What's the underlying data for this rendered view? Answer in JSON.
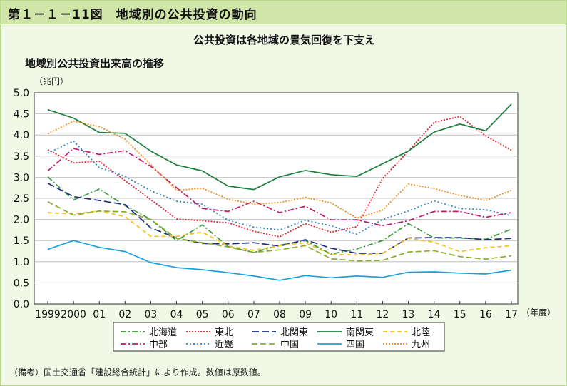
{
  "header": {
    "figure_title": "第１－１－11図　地域別の公共投資の動向"
  },
  "subtitle": "公共投資は各地域の景気回復を下支え",
  "note": "（備考）国土交通省「建設総合統計」により作成。数値は原数値。",
  "chart_data": {
    "type": "line",
    "title": "地域別公共投資出来高の推移",
    "ylabel": "（兆円）",
    "xlabel": "（年度）",
    "ylim": [
      0.0,
      5.0
    ],
    "yticks": [
      "0.0",
      "0.5",
      "1.0",
      "1.5",
      "2.0",
      "2.5",
      "3.0",
      "3.5",
      "4.0",
      "4.5",
      "5.0"
    ],
    "x_labels": [
      "1999",
      "2000",
      "01",
      "02",
      "03",
      "04",
      "05",
      "06",
      "07",
      "08",
      "09",
      "10",
      "11",
      "12",
      "13",
      "14",
      "15",
      "16",
      "17"
    ],
    "grid": true,
    "legend_position": "bottom",
    "series": [
      {
        "name": "北海道",
        "color": "#3a9a3a",
        "dash": "8,3,2,3",
        "values": [
          3.01,
          2.46,
          2.72,
          2.33,
          2.0,
          1.5,
          1.87,
          1.36,
          1.22,
          1.39,
          1.5,
          1.18,
          1.3,
          1.5,
          1.9,
          1.56,
          1.56,
          1.53,
          1.77
        ]
      },
      {
        "name": "東北",
        "color": "#e0202e",
        "dash": "2,2",
        "values": [
          3.65,
          3.34,
          3.38,
          2.92,
          2.47,
          2.01,
          1.97,
          1.92,
          1.72,
          1.59,
          1.9,
          1.7,
          1.83,
          2.97,
          3.62,
          4.3,
          4.44,
          3.98,
          3.64
        ]
      },
      {
        "name": "北関東",
        "color": "#1d2f7c",
        "dash": "10,4",
        "values": [
          2.86,
          2.54,
          2.45,
          2.35,
          1.8,
          1.56,
          1.43,
          1.42,
          1.45,
          1.37,
          1.52,
          1.32,
          1.2,
          1.2,
          1.56,
          1.57,
          1.57,
          1.52,
          1.55
        ]
      },
      {
        "name": "南関東",
        "color": "#1a7f3a",
        "dash": "",
        "values": [
          4.6,
          4.4,
          4.06,
          4.04,
          3.62,
          3.29,
          3.15,
          2.79,
          2.71,
          3.01,
          3.16,
          3.06,
          3.02,
          3.32,
          3.62,
          4.07,
          4.26,
          4.1,
          4.73
        ]
      },
      {
        "name": "北陸",
        "color": "#f4c21a",
        "dash": "6,4",
        "values": [
          2.16,
          2.13,
          2.2,
          2.07,
          1.6,
          1.6,
          1.7,
          1.37,
          1.27,
          1.38,
          1.45,
          1.17,
          1.16,
          1.2,
          1.55,
          1.46,
          1.24,
          1.33,
          1.38
        ]
      },
      {
        "name": "中部",
        "color": "#c0166c",
        "dash": "8,3,2,3",
        "values": [
          3.15,
          3.68,
          3.54,
          3.63,
          3.26,
          2.75,
          2.26,
          2.19,
          2.43,
          2.16,
          2.31,
          1.99,
          1.99,
          1.85,
          1.97,
          2.19,
          2.19,
          2.05,
          2.16
        ]
      },
      {
        "name": "近畿",
        "color": "#2c7fc6",
        "dash": "2,3",
        "values": [
          3.57,
          3.86,
          3.23,
          3.02,
          2.68,
          2.43,
          2.36,
          1.98,
          1.82,
          1.75,
          1.98,
          1.85,
          1.65,
          2.0,
          2.2,
          2.44,
          2.26,
          2.23,
          2.09
        ]
      },
      {
        "name": "中国",
        "color": "#8aac2e",
        "dash": "8,4",
        "values": [
          2.42,
          2.1,
          2.2,
          2.18,
          2.0,
          1.55,
          1.45,
          1.35,
          1.22,
          1.28,
          1.38,
          1.07,
          1.02,
          1.03,
          1.23,
          1.26,
          1.12,
          1.06,
          1.14
        ]
      },
      {
        "name": "四国",
        "color": "#1aa0dc",
        "dash": "",
        "values": [
          1.29,
          1.5,
          1.34,
          1.24,
          0.98,
          0.86,
          0.81,
          0.74,
          0.66,
          0.56,
          0.67,
          0.62,
          0.66,
          0.63,
          0.75,
          0.76,
          0.73,
          0.71,
          0.8
        ]
      },
      {
        "name": "九州",
        "color": "#f08c1a",
        "dash": "2,2",
        "values": [
          4.03,
          4.33,
          4.2,
          3.9,
          3.3,
          2.69,
          2.74,
          2.48,
          2.36,
          2.4,
          2.52,
          2.39,
          2.03,
          2.22,
          2.84,
          2.73,
          2.57,
          2.45,
          2.69
        ]
      }
    ]
  }
}
